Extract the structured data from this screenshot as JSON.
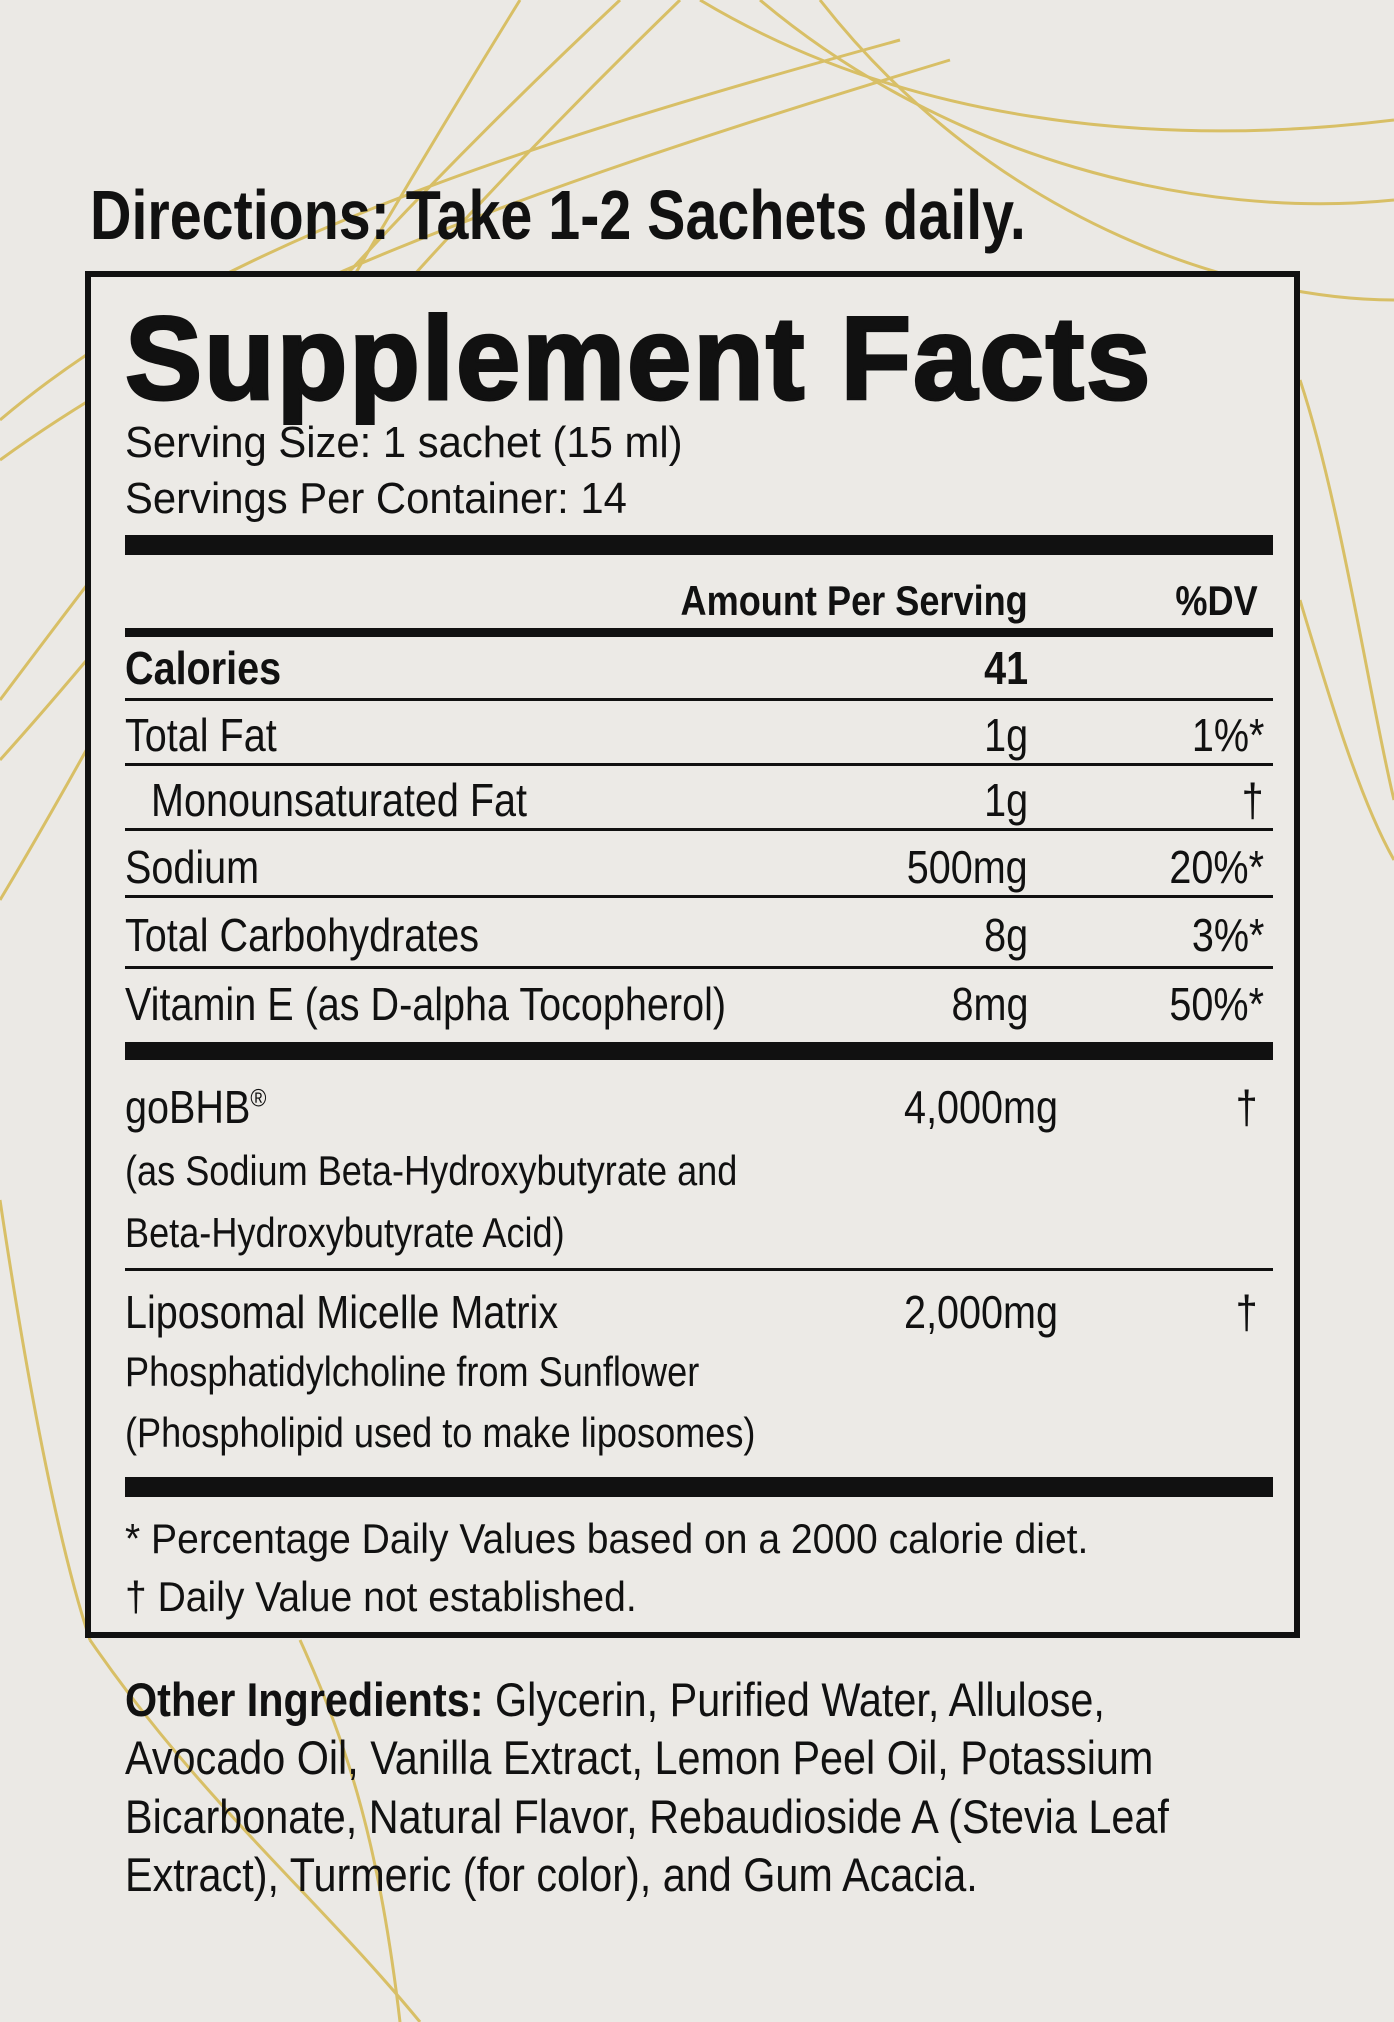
{
  "directions": "Directions: Take 1-2 Sachets daily.",
  "label": {
    "title": "Supplement Facts",
    "serving_size": "Serving Size: 1 sachet (15 ml)",
    "servings_per_container": "Servings Per Container: 14",
    "header": {
      "amount": "Amount Per Serving",
      "dv": "%DV"
    },
    "rows": [
      {
        "name": "Calories",
        "amount": "41",
        "dv": ""
      },
      {
        "name": "Total Fat",
        "amount": "1g",
        "dv": "1%*"
      },
      {
        "name": "Monounsaturated Fat",
        "amount": "1g",
        "dv": "†"
      },
      {
        "name": "Sodium",
        "amount": "500mg",
        "dv": "20%*"
      },
      {
        "name": "Total Carbohydrates",
        "amount": "8g",
        "dv": "3%*"
      },
      {
        "name": "Vitamin E (as D-alpha Tocopherol)",
        "amount": "8mg",
        "dv": "50%*"
      }
    ],
    "blend": [
      {
        "name": "goBHB",
        "mark": "®",
        "lines": [
          "(as Sodium Beta-Hydroxybutyrate and",
          "Beta-Hydroxybutyrate Acid)"
        ],
        "amount": "4,000mg",
        "dv": "†"
      },
      {
        "name": "Liposomal Micelle Matrix",
        "mark": "",
        "lines": [
          "Phosphatidylcholine from Sunflower",
          "(Phospholipid used to make liposomes)"
        ],
        "amount": "2,000mg",
        "dv": "†"
      }
    ],
    "footnotes": [
      "* Percentage Daily Values based on a 2000 calorie diet.",
      "† Daily Value not established."
    ]
  },
  "other_ingredients": {
    "label": "Other Ingredients:",
    "lines": [
      " Glycerin, Purified Water, Allulose,",
      "Avocado Oil, Vanilla Extract, Lemon Peel Oil, Potassium",
      "Bicarbonate, Natural Flavor, Rebaudioside A (Stevia Leaf",
      "Extract), Turmeric (for color), and Gum Acacia."
    ]
  },
  "colors": {
    "background": "#ebe9e5",
    "swirl": "#d2b23c",
    "ink": "#111111"
  }
}
